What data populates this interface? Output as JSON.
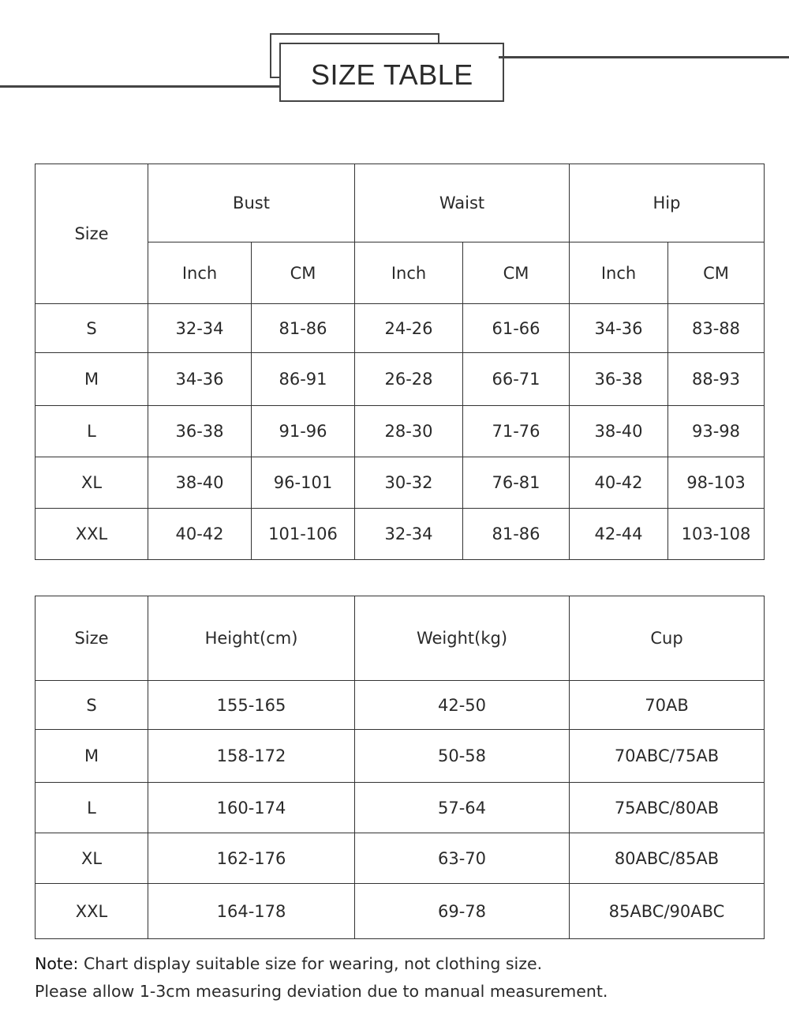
{
  "title": "SIZE TABLE",
  "measurements_table": {
    "size_header": "Size",
    "groups": [
      "Bust",
      "Waist",
      "Hip"
    ],
    "units": [
      "Inch",
      "CM",
      "Inch",
      "CM",
      "Inch",
      "CM"
    ],
    "rows": [
      [
        "S",
        "32-34",
        "81-86",
        "24-26",
        "61-66",
        "34-36",
        "83-88"
      ],
      [
        "M",
        "34-36",
        "86-91",
        "26-28",
        "66-71",
        "36-38",
        "88-93"
      ],
      [
        "L",
        "36-38",
        "91-96",
        "28-30",
        "71-76",
        "38-40",
        "93-98"
      ],
      [
        "XL",
        "38-40",
        "96-101",
        "30-32",
        "76-81",
        "40-42",
        "98-103"
      ],
      [
        "XXL",
        "40-42",
        "101-106",
        "32-34",
        "81-86",
        "42-44",
        "103-108"
      ]
    ]
  },
  "body_table": {
    "headers": [
      "Size",
      "Height(cm)",
      "Weight(kg)",
      "Cup"
    ],
    "rows": [
      [
        "S",
        "155-165",
        "42-50",
        "70AB"
      ],
      [
        "M",
        "158-172",
        "50-58",
        "70ABC/75AB"
      ],
      [
        "L",
        "160-174",
        "57-64",
        "75ABC/80AB"
      ],
      [
        "XL",
        "162-176",
        "63-70",
        "80ABC/85AB"
      ],
      [
        "XXL",
        "164-178",
        "69-78",
        "85ABC/90ABC"
      ]
    ]
  },
  "note": {
    "label": "Note:",
    "line1": "Chart display suitable size for wearing, not clothing size.",
    "line2": "Please allow 1-3cm measuring deviation due to manual measurement."
  }
}
